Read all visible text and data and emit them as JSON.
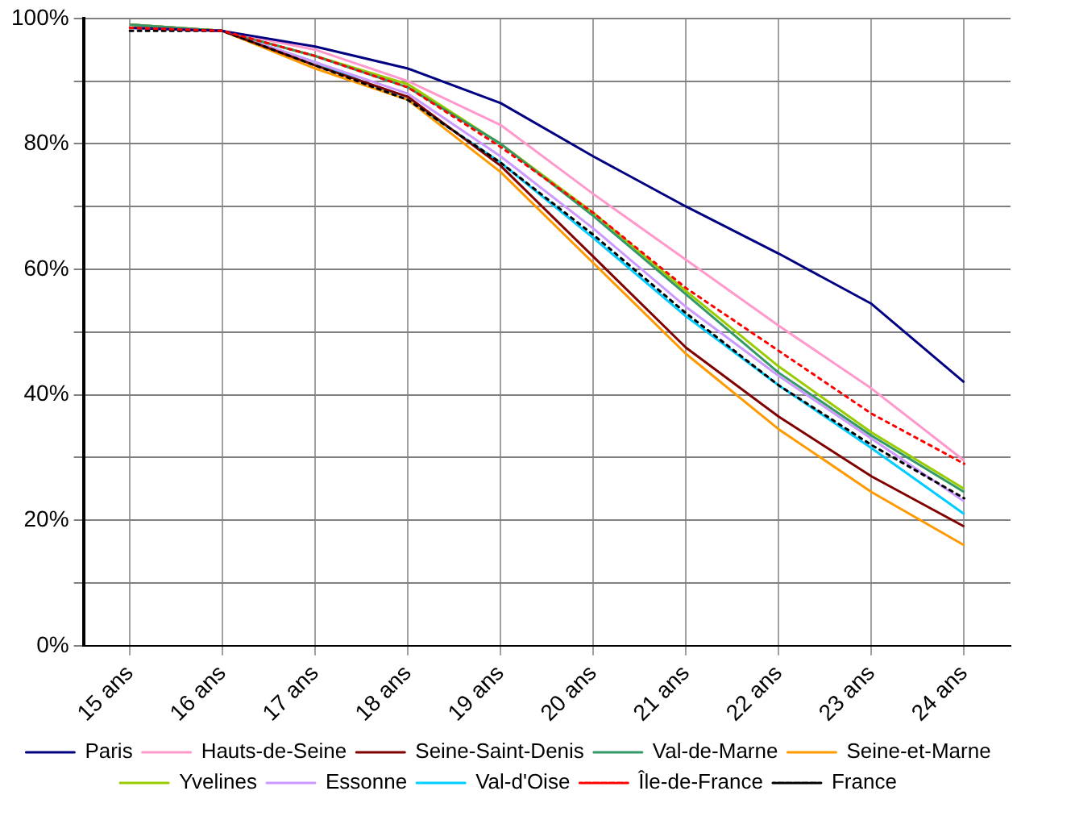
{
  "chart_data": {
    "type": "line",
    "categories": [
      "15 ans",
      "16 ans",
      "17 ans",
      "18 ans",
      "19 ans",
      "20 ans",
      "21 ans",
      "22 ans",
      "23 ans",
      "24 ans"
    ],
    "series": [
      {
        "name": "Paris",
        "color": "#000080",
        "values": [
          98.5,
          98,
          95.5,
          92,
          86.5,
          78,
          70,
          62.5,
          54.5,
          42
        ]
      },
      {
        "name": "Hauts-de-Seine",
        "color": "#ff99cc",
        "values": [
          98.5,
          98,
          95,
          90,
          83,
          72,
          61.5,
          51,
          41,
          29.5
        ]
      },
      {
        "name": "Seine-Saint-Denis",
        "color": "#800000",
        "values": [
          98.5,
          98,
          92.5,
          87.5,
          76.5,
          62,
          47.5,
          36.5,
          27,
          19
        ]
      },
      {
        "name": "Val-de-Marne",
        "color": "#339966",
        "values": [
          99,
          98,
          94,
          89,
          80,
          68.5,
          56,
          43.5,
          33.5,
          24.5
        ]
      },
      {
        "name": "Seine-et-Marne",
        "color": "#ff9900",
        "values": [
          99,
          98,
          92,
          87,
          75.5,
          61,
          46.5,
          34.5,
          24.5,
          16
        ]
      },
      {
        "name": "Yvelines",
        "color": "#99cc00",
        "values": [
          99,
          98,
          94,
          89.5,
          80,
          69,
          56.5,
          44.5,
          34,
          25
        ]
      },
      {
        "name": "Essonne",
        "color": "#cc99ff",
        "values": [
          99,
          98,
          93,
          88,
          78,
          66.5,
          54,
          43,
          33,
          23
        ]
      },
      {
        "name": "Val-d'Oise",
        "color": "#00ccff",
        "values": [
          99,
          98,
          93,
          87,
          77,
          65,
          52.5,
          41.5,
          31.5,
          21
        ]
      },
      {
        "name": "Île-de-France",
        "color": "#ff0000",
        "line_style": "dotted",
        "values": [
          98.5,
          98,
          94,
          89,
          79.5,
          69,
          57,
          47,
          37,
          29
        ]
      },
      {
        "name": "France",
        "color": "#000000",
        "line_style": "dotted",
        "values": [
          98,
          98,
          92.5,
          87,
          77,
          65.5,
          53,
          41.5,
          32,
          23.5
        ]
      }
    ],
    "ylim": [
      0,
      100
    ],
    "yticks": [
      {
        "value": 0,
        "label": "0%"
      },
      {
        "value": 10,
        "label": null
      },
      {
        "value": 20,
        "label": "20%"
      },
      {
        "value": 30,
        "label": null
      },
      {
        "value": 40,
        "label": "40%"
      },
      {
        "value": 50,
        "label": null
      },
      {
        "value": 60,
        "label": "60%"
      },
      {
        "value": 70,
        "label": null
      },
      {
        "value": 80,
        "label": "80%"
      },
      {
        "value": 90,
        "label": null
      },
      {
        "value": 100,
        "label": "100%"
      }
    ],
    "grid": true,
    "legend": "bottom",
    "marker": "none"
  }
}
